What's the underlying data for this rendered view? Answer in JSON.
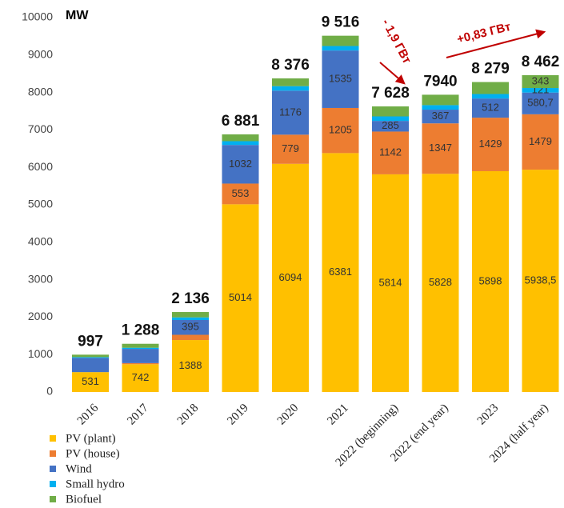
{
  "chart_data": {
    "type": "stacked_bar",
    "y_unit": "MW",
    "categories": [
      "2016",
      "2017",
      "2018",
      "2019",
      "2020",
      "2021",
      "2022  (beginning)",
      "2022  (end year)",
      "2023",
      "2024  (half year)"
    ],
    "series": [
      {
        "name": "PV (plant)",
        "color": "#FFC000",
        "values": [
          531,
          742,
          1388,
          5014,
          6094,
          6381,
          5814,
          5828,
          5898,
          5938.5
        ],
        "value_labels": [
          "531",
          "742",
          "1388",
          "5014",
          "6094",
          "6381",
          "5814",
          "5828",
          "5898",
          "5938,5"
        ]
      },
      {
        "name": "PV (house)",
        "color": "#ED7D31",
        "values": [
          0,
          30,
          140,
          553,
          779,
          1205,
          1142,
          1347,
          1429,
          1479
        ],
        "value_labels": [
          null,
          null,
          null,
          "553",
          "779",
          "1205",
          "1142",
          "1347",
          "1429",
          "1479"
        ]
      },
      {
        "name": "Wind",
        "color": "#4472C4",
        "values": [
          380,
          380,
          395,
          1032,
          1176,
          1535,
          285,
          367,
          512,
          580.7
        ],
        "value_labels": [
          null,
          null,
          "395",
          "1032",
          "1176",
          "1535",
          "285",
          "367",
          "512",
          "580,7"
        ]
      },
      {
        "name": "Small hydro",
        "color": "#00B0F0",
        "values": [
          20,
          30,
          70,
          100,
          120,
          120,
          120,
          120,
          120,
          121
        ],
        "value_labels": [
          null,
          null,
          null,
          null,
          null,
          null,
          null,
          null,
          null,
          "121"
        ]
      },
      {
        "name": "Biofuel",
        "color": "#70AD47",
        "values": [
          66,
          106,
          143,
          182,
          207,
          275,
          267,
          278,
          320,
          343
        ],
        "value_labels": [
          null,
          null,
          null,
          null,
          null,
          null,
          null,
          null,
          null,
          "343"
        ]
      }
    ],
    "totals": [
      997,
      1288,
      2136,
      6881,
      8376,
      9516,
      7628,
      7940,
      8279,
      8462
    ],
    "total_labels": [
      "997",
      "1 288",
      "2 136",
      "6 881",
      "8 376",
      "9 516",
      "7 628",
      "7940",
      "8 279",
      "8 462"
    ],
    "annotations": [
      "- 1,9 ГВт",
      "+0,83 ГВт"
    ],
    "ylim": [
      0,
      10000
    ],
    "yticks": [
      0,
      1000,
      2000,
      3000,
      4000,
      5000,
      6000,
      7000,
      8000,
      9000,
      10000
    ],
    "grid": false,
    "legend": "bottom-left"
  }
}
